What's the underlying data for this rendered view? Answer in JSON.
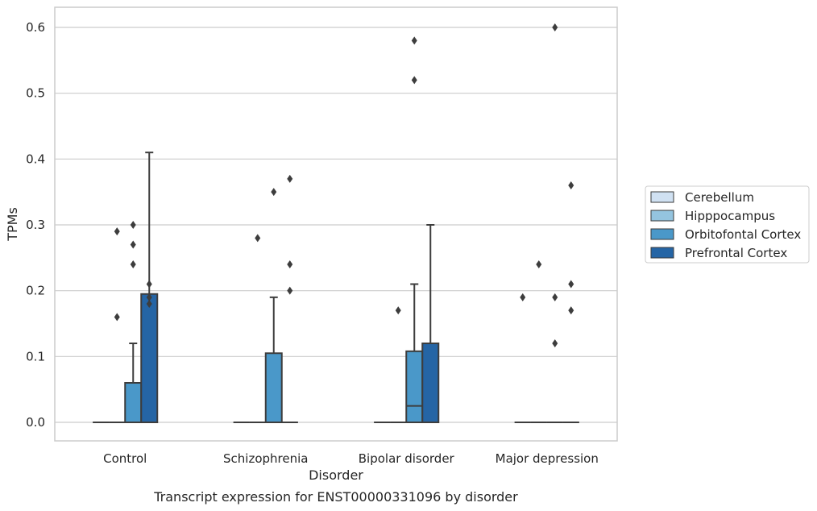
{
  "chart_data": {
    "type": "box",
    "title": "",
    "xlabel": "Disorder",
    "ylabel": "TPMs",
    "caption": "Transcript expression for ENST00000331096 by disorder",
    "ylim": [
      -0.03,
      0.63
    ],
    "yticks": [
      "0.0",
      "0.1",
      "0.2",
      "0.3",
      "0.4",
      "0.5",
      "0.6"
    ],
    "ytick_values": [
      0.0,
      0.1,
      0.2,
      0.3,
      0.4,
      0.5,
      0.6
    ],
    "grid": true,
    "legend_position": "right",
    "categories": [
      "Control",
      "Schizophrenia",
      "Bipolar disorder",
      "Major depression"
    ],
    "series": [
      {
        "name": "Cerebellum",
        "color": "#d0e1f2",
        "boxes": [
          {
            "q1": 0,
            "median": 0,
            "q3": 0,
            "whisker_low": 0,
            "whisker_high": 0,
            "outliers": []
          },
          {
            "q1": 0,
            "median": 0,
            "q3": 0,
            "whisker_low": 0,
            "whisker_high": 0,
            "outliers": []
          },
          {
            "q1": 0,
            "median": 0,
            "q3": 0,
            "whisker_low": 0,
            "whisker_high": 0,
            "outliers": []
          },
          {
            "q1": 0,
            "median": 0,
            "q3": 0,
            "whisker_low": 0,
            "whisker_high": 0,
            "outliers": [
              0.19
            ]
          }
        ]
      },
      {
        "name": "Hipppocampus",
        "color": "#94c4df",
        "boxes": [
          {
            "q1": 0,
            "median": 0,
            "q3": 0,
            "whisker_low": 0,
            "whisker_high": 0,
            "outliers": [
              0.29,
              0.16
            ]
          },
          {
            "q1": 0,
            "median": 0,
            "q3": 0,
            "whisker_low": 0,
            "whisker_high": 0,
            "outliers": [
              0.28
            ]
          },
          {
            "q1": 0,
            "median": 0,
            "q3": 0,
            "whisker_low": 0,
            "whisker_high": 0,
            "outliers": [
              0.17
            ]
          },
          {
            "q1": 0,
            "median": 0,
            "q3": 0,
            "whisker_low": 0,
            "whisker_high": 0,
            "outliers": [
              0.24
            ]
          }
        ]
      },
      {
        "name": "Orbitofontal Cortex",
        "color": "#4a98c9",
        "boxes": [
          {
            "q1": 0,
            "median": 0,
            "q3": 0.06,
            "whisker_low": 0,
            "whisker_high": 0.12,
            "outliers": [
              0.3,
              0.27,
              0.24
            ]
          },
          {
            "q1": 0,
            "median": 0,
            "q3": 0.105,
            "whisker_low": 0,
            "whisker_high": 0.19,
            "outliers": [
              0.35
            ]
          },
          {
            "q1": 0,
            "median": 0.025,
            "q3": 0.108,
            "whisker_low": 0,
            "whisker_high": 0.21,
            "outliers": [
              0.58,
              0.52
            ]
          },
          {
            "q1": 0,
            "median": 0,
            "q3": 0,
            "whisker_low": 0,
            "whisker_high": 0,
            "outliers": [
              0.6,
              0.19,
              0.12
            ]
          }
        ]
      },
      {
        "name": "Prefrontal Cortex",
        "color": "#2565a5",
        "boxes": [
          {
            "q1": 0,
            "median": 0,
            "q3": 0.195,
            "whisker_low": 0,
            "whisker_high": 0.41,
            "outliers": [
              0.21,
              0.19,
              0.18
            ]
          },
          {
            "q1": 0,
            "median": 0,
            "q3": 0,
            "whisker_low": 0,
            "whisker_high": 0,
            "outliers": [
              0.37,
              0.24,
              0.2
            ]
          },
          {
            "q1": 0,
            "median": 0,
            "q3": 0.12,
            "whisker_low": 0,
            "whisker_high": 0.3,
            "outliers": []
          },
          {
            "q1": 0,
            "median": 0,
            "q3": 0,
            "whisker_low": 0,
            "whisker_high": 0,
            "outliers": [
              0.36,
              0.21,
              0.17
            ]
          }
        ]
      }
    ]
  }
}
